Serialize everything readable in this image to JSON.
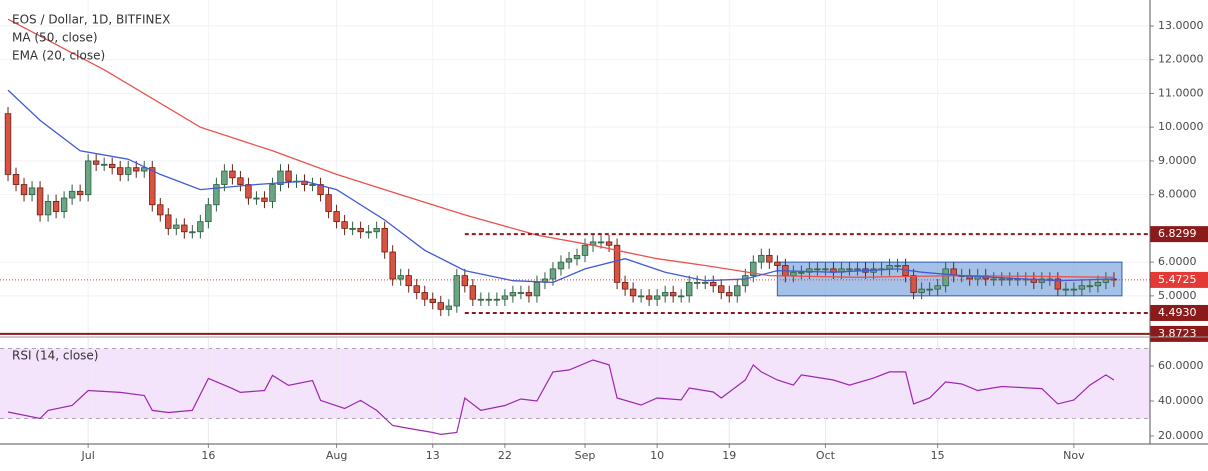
{
  "chart_data": {
    "type": "candlestick",
    "title": "EOS / Dollar, 1D, BITFINEX",
    "open": [
      10.4,
      8.6,
      8.3,
      8.0,
      8.2,
      7.4,
      7.8,
      7.5,
      7.9,
      8.1,
      8.0,
      9.0,
      8.9,
      8.9,
      8.8,
      8.6,
      8.8,
      8.7,
      8.8,
      7.7,
      7.4,
      7.0,
      7.1,
      6.9,
      6.9,
      7.2,
      7.7,
      8.3,
      8.7,
      8.5,
      8.3,
      7.9,
      7.9,
      7.8,
      8.3,
      8.7,
      8.4,
      8.4,
      8.3,
      8.3,
      8.0,
      7.5,
      7.2,
      7.0,
      7.0,
      6.9,
      6.9,
      7.0,
      6.3,
      5.5,
      5.6,
      5.3,
      5.1,
      4.9,
      4.8,
      4.6,
      4.7,
      5.6,
      5.3,
      4.9,
      4.9,
      4.9,
      4.9,
      5.0,
      5.1,
      5.1,
      5.0,
      5.4,
      5.5,
      5.8,
      6.0,
      6.1,
      6.2,
      6.5,
      6.6,
      6.6,
      6.5,
      5.4,
      5.2,
      5.0,
      5.0,
      4.9,
      5.0,
      5.1,
      5.0,
      5.0,
      5.4,
      5.4,
      5.4,
      5.3,
      5.1,
      5.0,
      5.3,
      5.6,
      6.0,
      6.2,
      6.0,
      5.9,
      5.6,
      5.7,
      5.7,
      5.8,
      5.8,
      5.8,
      5.7,
      5.8,
      5.8,
      5.8,
      5.7,
      5.8,
      5.8,
      5.9,
      5.9,
      5.6,
      5.1,
      5.2,
      5.2,
      5.3,
      5.8,
      5.6,
      5.6,
      5.5,
      5.6,
      5.5,
      5.5,
      5.5,
      5.5,
      5.5,
      5.5,
      5.4,
      5.5,
      5.5,
      5.2,
      5.2,
      5.2,
      5.3,
      5.3,
      5.4,
      5.5
    ],
    "high": [
      10.6,
      8.8,
      8.5,
      8.4,
      8.4,
      8.0,
      8.0,
      8.1,
      8.3,
      8.3,
      9.2,
      9.2,
      9.1,
      9.1,
      9.0,
      9.0,
      9.0,
      9.0,
      9.0,
      7.9,
      7.6,
      7.3,
      7.3,
      7.1,
      7.4,
      7.9,
      8.5,
      8.9,
      8.9,
      8.7,
      8.5,
      8.1,
      8.1,
      8.5,
      8.9,
      8.9,
      8.6,
      8.6,
      8.5,
      8.5,
      8.2,
      7.7,
      7.4,
      7.2,
      7.2,
      7.1,
      7.2,
      7.2,
      6.5,
      5.8,
      5.8,
      5.5,
      5.3,
      5.1,
      5.0,
      4.9,
      5.8,
      5.8,
      5.5,
      5.1,
      5.1,
      5.1,
      5.2,
      5.3,
      5.3,
      5.3,
      5.6,
      5.7,
      6.0,
      6.2,
      6.3,
      6.4,
      6.7,
      6.8,
      6.8,
      6.8,
      6.7,
      5.6,
      5.4,
      5.2,
      5.2,
      5.2,
      5.3,
      5.3,
      5.2,
      5.6,
      5.6,
      5.6,
      5.6,
      5.5,
      5.3,
      5.5,
      5.8,
      6.2,
      6.4,
      6.4,
      6.2,
      6.1,
      5.9,
      5.9,
      6.0,
      6.0,
      6.0,
      6.0,
      6.0,
      6.0,
      6.0,
      6.0,
      6.0,
      6.0,
      6.1,
      6.1,
      6.1,
      5.8,
      5.4,
      5.4,
      5.5,
      6.0,
      6.0,
      5.8,
      5.8,
      5.8,
      5.8,
      5.7,
      5.7,
      5.7,
      5.7,
      5.7,
      5.7,
      5.7,
      5.7,
      5.7,
      5.4,
      5.4,
      5.5,
      5.5,
      5.6,
      5.7,
      5.7
    ],
    "low": [
      8.4,
      8.1,
      7.8,
      7.8,
      7.2,
      7.2,
      7.3,
      7.3,
      7.7,
      7.8,
      7.8,
      8.7,
      8.7,
      8.6,
      8.4,
      8.4,
      8.5,
      8.5,
      7.5,
      7.2,
      6.8,
      6.8,
      6.7,
      6.7,
      6.7,
      7.0,
      7.5,
      8.1,
      8.3,
      8.1,
      7.7,
      7.7,
      7.6,
      7.6,
      8.1,
      8.2,
      8.2,
      8.1,
      8.1,
      7.8,
      7.3,
      7.0,
      6.8,
      6.8,
      6.7,
      6.7,
      6.7,
      6.1,
      5.3,
      5.3,
      5.1,
      4.9,
      4.7,
      4.6,
      4.4,
      4.4,
      4.5,
      5.1,
      4.7,
      4.7,
      4.7,
      4.7,
      4.7,
      4.8,
      4.9,
      4.8,
      4.8,
      5.2,
      5.3,
      5.6,
      5.8,
      5.9,
      6.0,
      6.3,
      6.4,
      6.3,
      5.2,
      5.0,
      4.8,
      4.8,
      4.7,
      4.7,
      4.8,
      4.8,
      4.8,
      4.8,
      5.2,
      5.2,
      5.1,
      4.9,
      4.8,
      4.8,
      5.1,
      5.4,
      5.8,
      5.8,
      5.7,
      5.4,
      5.4,
      5.5,
      5.5,
      5.6,
      5.6,
      5.5,
      5.5,
      5.6,
      5.6,
      5.5,
      5.5,
      5.6,
      5.6,
      5.7,
      5.4,
      4.9,
      4.9,
      5.0,
      5.0,
      5.1,
      5.4,
      5.4,
      5.3,
      5.3,
      5.3,
      5.3,
      5.3,
      5.3,
      5.3,
      5.3,
      5.2,
      5.2,
      5.3,
      5.0,
      5.0,
      5.0,
      5.0,
      5.1,
      5.1,
      5.2,
      5.27
    ],
    "close": [
      8.6,
      8.3,
      8.0,
      8.2,
      7.4,
      7.8,
      7.5,
      7.9,
      8.1,
      8.0,
      9.0,
      8.9,
      8.9,
      8.8,
      8.6,
      8.8,
      8.7,
      8.8,
      7.7,
      7.4,
      7.0,
      7.1,
      6.9,
      6.9,
      7.2,
      7.7,
      8.3,
      8.7,
      8.5,
      8.3,
      7.9,
      7.9,
      7.8,
      8.3,
      8.7,
      8.4,
      8.4,
      8.3,
      8.3,
      8.0,
      7.5,
      7.2,
      7.0,
      7.0,
      6.9,
      6.9,
      7.0,
      6.3,
      5.5,
      5.6,
      5.3,
      5.1,
      4.9,
      4.8,
      4.6,
      4.7,
      5.6,
      5.3,
      4.9,
      4.9,
      4.9,
      4.9,
      5.0,
      5.1,
      5.1,
      5.0,
      5.4,
      5.5,
      5.8,
      6.0,
      6.1,
      6.2,
      6.5,
      6.6,
      6.6,
      6.5,
      5.4,
      5.2,
      5.0,
      5.0,
      4.9,
      5.0,
      5.1,
      5.0,
      5.0,
      5.4,
      5.4,
      5.4,
      5.3,
      5.1,
      5.0,
      5.3,
      5.6,
      6.0,
      6.2,
      6.0,
      5.9,
      5.6,
      5.7,
      5.7,
      5.8,
      5.8,
      5.8,
      5.7,
      5.8,
      5.8,
      5.8,
      5.7,
      5.8,
      5.8,
      5.9,
      5.9,
      5.6,
      5.1,
      5.2,
      5.2,
      5.3,
      5.8,
      5.6,
      5.6,
      5.5,
      5.6,
      5.5,
      5.5,
      5.5,
      5.5,
      5.5,
      5.5,
      5.4,
      5.5,
      5.5,
      5.2,
      5.2,
      5.2,
      5.3,
      5.3,
      5.4,
      5.5,
      5.47
    ],
    "up_color": "#6ba583",
    "down_color": "#d75442",
    "xlim": [
      -1,
      142.5
    ],
    "xticks": [
      {
        "value": 10,
        "label": "Jul"
      },
      {
        "value": 25,
        "label": "16"
      },
      {
        "value": 41,
        "label": "Aug"
      },
      {
        "value": 53,
        "label": "13"
      },
      {
        "value": 62,
        "label": "22"
      },
      {
        "value": 72,
        "label": "Sep"
      },
      {
        "value": 81,
        "label": "10"
      },
      {
        "value": 90,
        "label": "19"
      },
      {
        "value": 102,
        "label": "Oct"
      },
      {
        "value": 116,
        "label": "15"
      },
      {
        "value": 133,
        "label": "Nov"
      }
    ],
    "ylim": [
      3.81,
      13.77
    ],
    "yticks": [
      {
        "value": 5,
        "label": "5.0000"
      },
      {
        "value": 6,
        "label": "6.0000"
      },
      {
        "value": 8,
        "label": "8.0000"
      },
      {
        "value": 9,
        "label": "9.0000"
      },
      {
        "value": 10,
        "label": "10.0000"
      },
      {
        "value": 11,
        "label": "11.0000"
      },
      {
        "value": 12,
        "label": "12.0000"
      },
      {
        "value": 13,
        "label": "13.0000"
      }
    ],
    "grid": true,
    "series": [
      {
        "name": "MA (50, close)",
        "color": "#e8534c",
        "x": [
          0,
          12,
          24,
          33,
          41,
          49,
          57,
          66,
          73,
          81,
          87,
          95,
          106,
          119,
          138
        ],
        "values": [
          13.2,
          11.7,
          10.0,
          9.3,
          8.6,
          8.0,
          7.4,
          6.8,
          6.5,
          6.1,
          5.9,
          5.6,
          5.55,
          5.6,
          5.55
        ]
      },
      {
        "name": "EMA (20, close)",
        "color": "#3f5bd6",
        "x": [
          0,
          4,
          9,
          15,
          19,
          24,
          31,
          37,
          41,
          47,
          52,
          57,
          63,
          68,
          72,
          77,
          82,
          87,
          92,
          96,
          103,
          111,
          114,
          119,
          131,
          138
        ],
        "values": [
          11.1,
          10.2,
          9.3,
          9.05,
          8.6,
          8.15,
          8.3,
          8.4,
          8.15,
          7.25,
          6.35,
          5.75,
          5.45,
          5.4,
          5.8,
          6.1,
          5.7,
          5.45,
          5.5,
          5.75,
          5.7,
          5.8,
          5.7,
          5.6,
          5.45,
          5.5
        ]
      }
    ],
    "levels": [
      {
        "value": 6.8299,
        "label": "6.8299",
        "color": "#8b1a1a",
        "style": "dashed",
        "from": 57
      },
      {
        "value": 5.4725,
        "label": "5.4725",
        "color": "#e53935",
        "style": "dotted"
      },
      {
        "value": 4.493,
        "label": "4.4930",
        "color": "#8b1a1a",
        "style": "dashed",
        "from": 57
      },
      {
        "value": 3.8723,
        "label": "3.8723",
        "color": "#8b1a1a",
        "style": "solid"
      }
    ],
    "range_box": {
      "x": [
        96,
        139
      ],
      "y": [
        5.0,
        6.0
      ],
      "color": "#5b8ed6"
    },
    "rsi": {
      "name": "RSI (14, close)",
      "color": "#9c27b0",
      "x": [
        0,
        4,
        5,
        8,
        10,
        14,
        17,
        18,
        20,
        23,
        25,
        28,
        29,
        32,
        33,
        35,
        38,
        39,
        42,
        44,
        46,
        48,
        50,
        53,
        54,
        56,
        57,
        59,
        62,
        64,
        66,
        68,
        70,
        73,
        75,
        76,
        79,
        81,
        84,
        85,
        88,
        89,
        92,
        93,
        94,
        96,
        98,
        99,
        103,
        105,
        108,
        110,
        112,
        113,
        115,
        117,
        119,
        121,
        124,
        129,
        131,
        133,
        135,
        137,
        138
      ],
      "values": [
        33.7,
        30,
        34.6,
        37.4,
        46,
        44.9,
        43.1,
        34.6,
        33.4,
        34.6,
        52.9,
        47.1,
        44.9,
        46,
        54.6,
        48.9,
        51.7,
        40.3,
        35.7,
        40.3,
        34.6,
        26,
        24.3,
        22,
        20.9,
        22,
        41.7,
        34.6,
        37.4,
        41.1,
        40,
        56.6,
        57.7,
        63.4,
        60.6,
        41.7,
        37.7,
        41.7,
        40.6,
        47.4,
        45.1,
        41.7,
        52,
        60.6,
        56.6,
        52,
        49.1,
        54.9,
        52,
        49.1,
        53.1,
        56.6,
        56.6,
        38.3,
        41.7,
        50.9,
        49.7,
        46,
        48.3,
        47.1,
        38.3,
        40.6,
        49.1,
        54.9,
        52
      ],
      "ylim": [
        15.4,
        76
      ],
      "yticks": [
        {
          "value": 20,
          "label": "20.0000"
        },
        {
          "value": 40,
          "label": "40.0000"
        },
        {
          "value": 60,
          "label": "60.0000"
        }
      ],
      "band": [
        30,
        70
      ],
      "band_color": "#f3e4fb"
    }
  }
}
